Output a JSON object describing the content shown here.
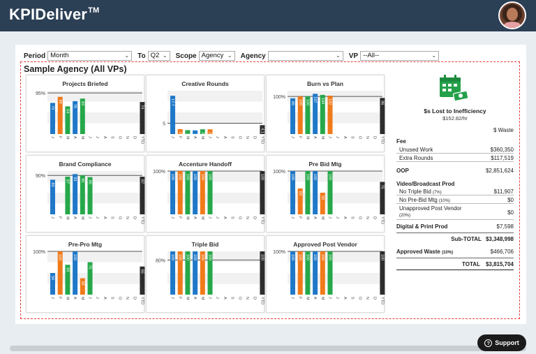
{
  "app": {
    "title": "KPIDeliver",
    "trademark": "TM"
  },
  "filters": {
    "period_label": "Period",
    "period_value": "Month",
    "to_label": "To",
    "to_value": "Q2",
    "scope_label": "Scope",
    "scope_value": "Agency",
    "agency_label": "Agency",
    "agency_value": "",
    "vp_label": "VP",
    "vp_value": "--All--"
  },
  "agency_title": "Sample Agency (All VPs)",
  "colors": {
    "blue": "#1f78c8",
    "orange": "#f07a1a",
    "green": "#26a84a",
    "black": "#2d2d2d"
  },
  "chart_data": [
    {
      "title": "Projects Briefed",
      "type": "bar",
      "target_label": "95%",
      "target": 95,
      "categories": [
        "J",
        "F",
        "M",
        "A",
        "M",
        "J",
        "J",
        "A",
        "S",
        "O",
        "N",
        "D",
        "YTD"
      ],
      "values": [
        72,
        86,
        64,
        76,
        82,
        null,
        null,
        null,
        null,
        null,
        null,
        null,
        74
      ],
      "labels": [
        "72",
        "86",
        "64",
        "76",
        "82",
        "",
        "",
        "",
        "",
        "",
        "",
        "",
        "74"
      ],
      "colors": [
        "blue",
        "orange",
        "green",
        "blue",
        "green",
        "",
        "",
        "",
        "",
        "",
        "",
        "",
        "black"
      ],
      "ylim": [
        0,
        100
      ]
    },
    {
      "title": "Creative Rounds",
      "type": "bar",
      "target_label": "5",
      "target": 5,
      "categories": [
        "J",
        "F",
        "M",
        "A",
        "M",
        "J",
        "J",
        "A",
        "S",
        "O",
        "N",
        "D",
        "YTD"
      ],
      "values": [
        17.7,
        2.3,
        1.8,
        1.7,
        2.2,
        2.2,
        null,
        null,
        null,
        null,
        null,
        null,
        4.1
      ],
      "labels": [
        "17.7",
        "2.3",
        "1.8",
        "1.7",
        "2.2",
        "2.2",
        "",
        "",
        "",
        "",
        "",
        "",
        "4.1"
      ],
      "colors": [
        "blue",
        "orange",
        "green",
        "blue",
        "green",
        "orange",
        "",
        "",
        "",
        "",
        "",
        "",
        "black"
      ],
      "ylim": [
        0,
        20
      ]
    },
    {
      "title": "Burn vs Plan",
      "type": "bar",
      "target_label": "100%",
      "target": 100,
      "categories": [
        "J",
        "F",
        "M",
        "A",
        "M",
        "J",
        "J",
        "A",
        "S",
        "O",
        "N",
        "D",
        "YTD"
      ],
      "values": [
        95,
        100,
        100,
        107,
        104,
        102,
        null,
        null,
        null,
        null,
        null,
        null,
        96
      ],
      "labels": [
        "95",
        "100",
        "100",
        "107",
        "104",
        "102",
        "",
        "",
        "",
        "",
        "",
        "",
        "96"
      ],
      "colors": [
        "blue",
        "orange",
        "green",
        "blue",
        "green",
        "orange",
        "",
        "",
        "",
        "",
        "",
        "",
        "black"
      ],
      "ylim": [
        0,
        115
      ]
    },
    {
      "title": "Brand Compliance",
      "type": "bar",
      "target_label": "90%",
      "target": 90,
      "categories": [
        "J",
        "F",
        "M",
        "A",
        "M",
        "J",
        "J",
        "A",
        "S",
        "O",
        "N",
        "D",
        "YTD"
      ],
      "values": [
        80,
        null,
        87,
        93,
        90,
        86,
        null,
        null,
        null,
        null,
        null,
        null,
        87
      ],
      "labels": [
        "80",
        "",
        "87",
        "93",
        "90",
        "86",
        "",
        "",
        "",
        "",
        "",
        "",
        "87"
      ],
      "colors": [
        "blue",
        "",
        "green",
        "blue",
        "green",
        "green",
        "",
        "",
        "",
        "",
        "",
        "",
        "black"
      ],
      "ylim": [
        0,
        100
      ]
    },
    {
      "title": "Accenture Handoff",
      "type": "bar",
      "target_label": "100%",
      "target": 100,
      "categories": [
        "J",
        "F",
        "M",
        "A",
        "M",
        "J",
        "J",
        "A",
        "S",
        "O",
        "N",
        "D",
        "YTD"
      ],
      "values": [
        100,
        100,
        100,
        100,
        100,
        100,
        null,
        null,
        null,
        null,
        null,
        null,
        100
      ],
      "labels": [
        "100",
        "100",
        "100",
        "100",
        "100",
        "100",
        "",
        "",
        "",
        "",
        "",
        "",
        "100"
      ],
      "colors": [
        "blue",
        "orange",
        "green",
        "blue",
        "orange",
        "green",
        "",
        "",
        "",
        "",
        "",
        "",
        "black"
      ],
      "ylim": [
        0,
        100
      ]
    },
    {
      "title": "Pre Bid Mtg",
      "type": "bar",
      "target_label": "100%",
      "target": 100,
      "categories": [
        "J",
        "F",
        "M",
        "A",
        "M",
        "J",
        "J",
        "A",
        "S",
        "O",
        "N",
        "D",
        "YTD"
      ],
      "values": [
        100,
        60,
        100,
        100,
        50,
        100,
        null,
        null,
        null,
        null,
        null,
        null,
        75
      ],
      "labels": [
        "100",
        "60",
        "100",
        "100",
        "50",
        "100",
        "",
        "",
        "",
        "",
        "",
        "",
        "75"
      ],
      "colors": [
        "blue",
        "orange",
        "green",
        "blue",
        "orange",
        "green",
        "",
        "",
        "",
        "",
        "",
        "",
        "black"
      ],
      "ylim": [
        0,
        100
      ]
    },
    {
      "title": "Pre-Pro Mtg",
      "type": "bar",
      "target_label": "100%",
      "target": 100,
      "categories": [
        "J",
        "F",
        "M",
        "A",
        "M",
        "J",
        "J",
        "A",
        "S",
        "O",
        "N",
        "D",
        "YTD"
      ],
      "values": [
        50,
        100,
        69,
        100,
        38,
        75,
        null,
        null,
        null,
        null,
        null,
        null,
        65
      ],
      "labels": [
        "50",
        "100",
        "69",
        "100",
        "38",
        "75",
        "",
        "",
        "",
        "",
        "",
        "",
        "65"
      ],
      "colors": [
        "blue",
        "orange",
        "green",
        "blue",
        "orange",
        "green",
        "",
        "",
        "",
        "",
        "",
        "",
        "black"
      ],
      "ylim": [
        0,
        100
      ]
    },
    {
      "title": "Triple Bid",
      "type": "bar",
      "target_label": "80%",
      "target": 80,
      "categories": [
        "J",
        "F",
        "M",
        "A",
        "M",
        "J",
        "J",
        "A",
        "S",
        "O",
        "N",
        "D",
        "YTD"
      ],
      "values": [
        100,
        100,
        100,
        100,
        100,
        100,
        null,
        null,
        null,
        null,
        null,
        null,
        100
      ],
      "labels": [
        "100",
        "100",
        "100",
        "100",
        "100",
        "100",
        "",
        "",
        "",
        "",
        "",
        "",
        "100"
      ],
      "colors": [
        "blue",
        "orange",
        "green",
        "blue",
        "orange",
        "green",
        "",
        "",
        "",
        "",
        "",
        "",
        "black"
      ],
      "ylim": [
        0,
        100
      ]
    },
    {
      "title": "Approved Post Vendor",
      "type": "bar",
      "target_label": "100%",
      "target": 100,
      "categories": [
        "J",
        "F",
        "M",
        "A",
        "M",
        "J",
        "J",
        "A",
        "S",
        "O",
        "N",
        "D",
        "YTD"
      ],
      "values": [
        100,
        100,
        100,
        100,
        100,
        100,
        null,
        null,
        null,
        null,
        null,
        null,
        100
      ],
      "labels": [
        "100",
        "100",
        "100",
        "100",
        "100",
        "100",
        "",
        "",
        "",
        "",
        "",
        "",
        "100"
      ],
      "colors": [
        "blue",
        "orange",
        "green",
        "blue",
        "orange",
        "green",
        "",
        "",
        "",
        "",
        "",
        "",
        "black"
      ],
      "ylim": [
        0,
        100
      ]
    }
  ],
  "summary": {
    "icon": "calendar-money-icon",
    "loss_title": "$s Lost to Inefficiency",
    "loss_rate": "$152.82/hr",
    "waste_header": "$ Waste",
    "fee_label": "Fee",
    "unused_work_label": "Unused Work",
    "unused_work_value": "$360,350",
    "extra_rounds_label": "Extra Rounds",
    "extra_rounds_value": "$117,519",
    "oop_label": "OOP",
    "oop_value": "$2,851,624",
    "video_label": "Video/Broadcast Prod",
    "no_triple_bid_label": "No Triple Bid",
    "no_triple_bid_pct": "(7%)",
    "no_triple_bid_value": "$11,907",
    "no_prebid_label": "No Pre-Bid Mtg",
    "no_prebid_pct": "(10%)",
    "no_prebid_value": "$0",
    "unapproved_label": "Unapproved Post Vendor",
    "unapproved_pct": "(20%)",
    "unapproved_value": "$0",
    "digital_label": "Digital & Print Prod",
    "digital_value": "$7,598",
    "subtotal_label": "Sub-TOTAL",
    "subtotal_value": "$3,348,998",
    "approved_waste_label": "Approved Waste",
    "approved_waste_pct": "(10%)",
    "approved_waste_value": "$466,706",
    "total_label": "TOTAL",
    "total_value": "$3,815,704"
  },
  "support_label": "Support"
}
